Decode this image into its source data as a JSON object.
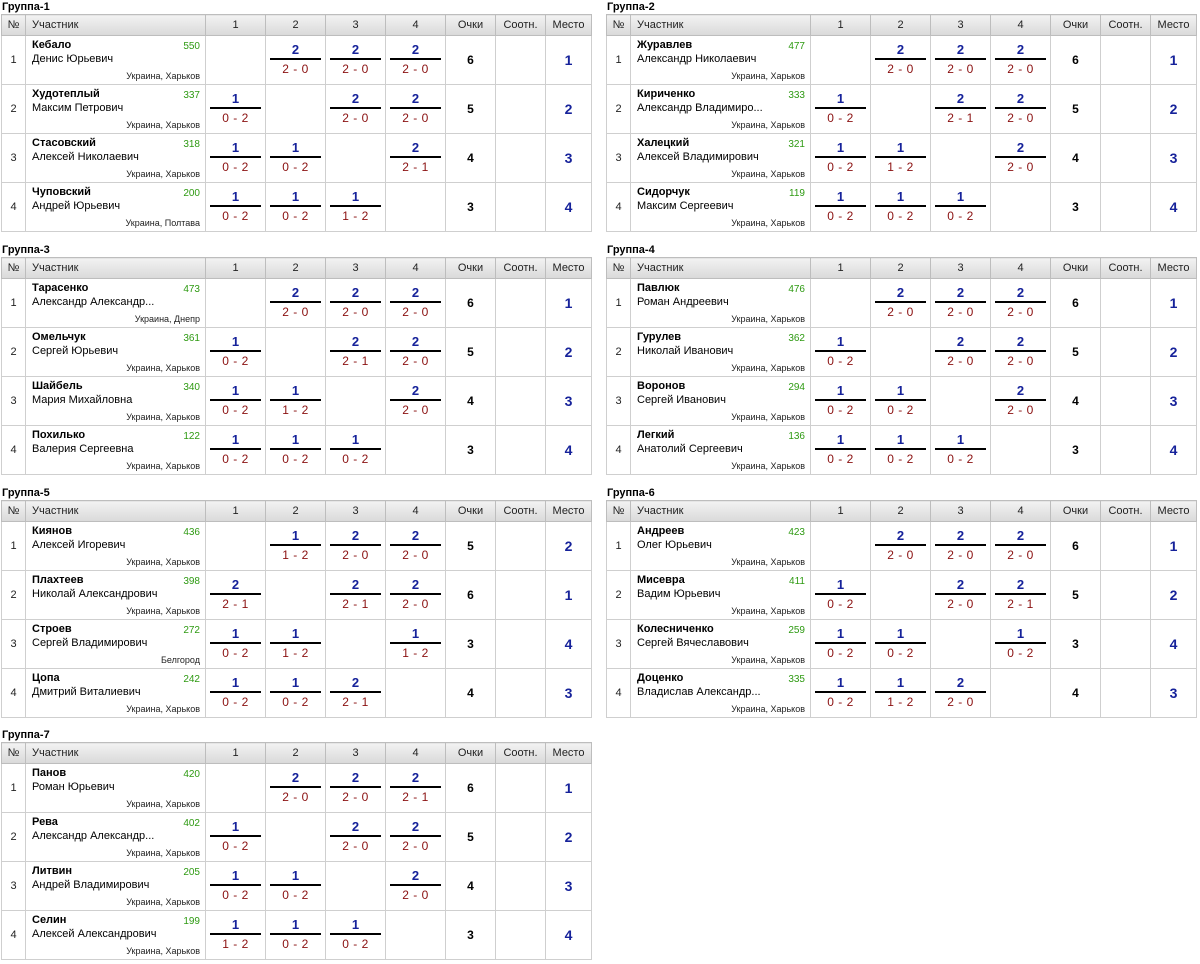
{
  "headers": {
    "num": "№",
    "player": "Участник",
    "c1": "1",
    "c2": "2",
    "c3": "3",
    "c4": "4",
    "points": "Очки",
    "sootn": "Соотн.",
    "place": "Место"
  },
  "groups": [
    {
      "title": "Группа-1",
      "players": [
        {
          "num": "1",
          "last": "Кебало",
          "first": "Денис Юрьевич",
          "rating": "550",
          "city": "Украина, Харьков",
          "r": [
            null,
            {
              "s": "2",
              "g": "2 - 0"
            },
            {
              "s": "2",
              "g": "2 - 0"
            },
            {
              "s": "2",
              "g": "2 - 0"
            }
          ],
          "points": "6",
          "place": "1"
        },
        {
          "num": "2",
          "last": "Худотеплый",
          "first": "Максим Петрович",
          "rating": "337",
          "city": "Украина, Харьков",
          "r": [
            {
              "s": "1",
              "g": "0 - 2"
            },
            null,
            {
              "s": "2",
              "g": "2 - 0"
            },
            {
              "s": "2",
              "g": "2 - 0"
            }
          ],
          "points": "5",
          "place": "2"
        },
        {
          "num": "3",
          "last": "Стасовский",
          "first": "Алексей Николаевич",
          "rating": "318",
          "city": "Украина, Харьков",
          "r": [
            {
              "s": "1",
              "g": "0 - 2"
            },
            {
              "s": "1",
              "g": "0 - 2"
            },
            null,
            {
              "s": "2",
              "g": "2 - 1"
            }
          ],
          "points": "4",
          "place": "3"
        },
        {
          "num": "4",
          "last": "Чуповский",
          "first": "Андрей Юрьевич",
          "rating": "200",
          "city": "Украина, Полтава",
          "r": [
            {
              "s": "1",
              "g": "0 - 2"
            },
            {
              "s": "1",
              "g": "0 - 2"
            },
            {
              "s": "1",
              "g": "1 - 2"
            },
            null
          ],
          "points": "3",
          "place": "4"
        }
      ]
    },
    {
      "title": "Группа-2",
      "players": [
        {
          "num": "1",
          "last": "Журавлев",
          "first": "Александр Николаевич",
          "rating": "477",
          "city": "Украина, Харьков",
          "r": [
            null,
            {
              "s": "2",
              "g": "2 - 0"
            },
            {
              "s": "2",
              "g": "2 - 0"
            },
            {
              "s": "2",
              "g": "2 - 0"
            }
          ],
          "points": "6",
          "place": "1"
        },
        {
          "num": "2",
          "last": "Кириченко",
          "first": "Александр Владимиро...",
          "rating": "333",
          "city": "Украина, Харьков",
          "r": [
            {
              "s": "1",
              "g": "0 - 2"
            },
            null,
            {
              "s": "2",
              "g": "2 - 1"
            },
            {
              "s": "2",
              "g": "2 - 0"
            }
          ],
          "points": "5",
          "place": "2"
        },
        {
          "num": "3",
          "last": "Халецкий",
          "first": "Алексей Владимирович",
          "rating": "321",
          "city": "Украина, Харьков",
          "r": [
            {
              "s": "1",
              "g": "0 - 2"
            },
            {
              "s": "1",
              "g": "1 - 2"
            },
            null,
            {
              "s": "2",
              "g": "2 - 0"
            }
          ],
          "points": "4",
          "place": "3"
        },
        {
          "num": "4",
          "last": "Сидорчук",
          "first": "Максим Сергеевич",
          "rating": "119",
          "city": "Украина, Харьков",
          "r": [
            {
              "s": "1",
              "g": "0 - 2"
            },
            {
              "s": "1",
              "g": "0 - 2"
            },
            {
              "s": "1",
              "g": "0 - 2"
            },
            null
          ],
          "points": "3",
          "place": "4"
        }
      ]
    },
    {
      "title": "Группа-3",
      "players": [
        {
          "num": "1",
          "last": "Тарасенко",
          "first": "Александр Александр...",
          "rating": "473",
          "city": "Украина, Днепр",
          "r": [
            null,
            {
              "s": "2",
              "g": "2 - 0"
            },
            {
              "s": "2",
              "g": "2 - 0"
            },
            {
              "s": "2",
              "g": "2 - 0"
            }
          ],
          "points": "6",
          "place": "1"
        },
        {
          "num": "2",
          "last": "Омельчук",
          "first": "Сергей Юрьевич",
          "rating": "361",
          "city": "Украина, Харьков",
          "r": [
            {
              "s": "1",
              "g": "0 - 2"
            },
            null,
            {
              "s": "2",
              "g": "2 - 1"
            },
            {
              "s": "2",
              "g": "2 - 0"
            }
          ],
          "points": "5",
          "place": "2"
        },
        {
          "num": "3",
          "last": "Шайбель",
          "first": "Мария Михайловна",
          "rating": "340",
          "city": "Украина, Харьков",
          "r": [
            {
              "s": "1",
              "g": "0 - 2"
            },
            {
              "s": "1",
              "g": "1 - 2"
            },
            null,
            {
              "s": "2",
              "g": "2 - 0"
            }
          ],
          "points": "4",
          "place": "3"
        },
        {
          "num": "4",
          "last": "Похилько",
          "first": "Валерия Сергеевна",
          "rating": "122",
          "city": "Украина, Харьков",
          "r": [
            {
              "s": "1",
              "g": "0 - 2"
            },
            {
              "s": "1",
              "g": "0 - 2"
            },
            {
              "s": "1",
              "g": "0 - 2"
            },
            null
          ],
          "points": "3",
          "place": "4"
        }
      ]
    },
    {
      "title": "Группа-4",
      "players": [
        {
          "num": "1",
          "last": "Павлюк",
          "first": "Роман Андреевич",
          "rating": "476",
          "city": "Украина, Харьков",
          "r": [
            null,
            {
              "s": "2",
              "g": "2 - 0"
            },
            {
              "s": "2",
              "g": "2 - 0"
            },
            {
              "s": "2",
              "g": "2 - 0"
            }
          ],
          "points": "6",
          "place": "1"
        },
        {
          "num": "2",
          "last": "Гурулев",
          "first": "Николай Иванович",
          "rating": "362",
          "city": "Украина, Харьков",
          "r": [
            {
              "s": "1",
              "g": "0 - 2"
            },
            null,
            {
              "s": "2",
              "g": "2 - 0"
            },
            {
              "s": "2",
              "g": "2 - 0"
            }
          ],
          "points": "5",
          "place": "2"
        },
        {
          "num": "3",
          "last": "Воронов",
          "first": "Сергей Иванович",
          "rating": "294",
          "city": "Украина, Харьков",
          "r": [
            {
              "s": "1",
              "g": "0 - 2"
            },
            {
              "s": "1",
              "g": "0 - 2"
            },
            null,
            {
              "s": "2",
              "g": "2 - 0"
            }
          ],
          "points": "4",
          "place": "3"
        },
        {
          "num": "4",
          "last": "Легкий",
          "first": "Анатолий Сергеевич",
          "rating": "136",
          "city": "Украина, Харьков",
          "r": [
            {
              "s": "1",
              "g": "0 - 2"
            },
            {
              "s": "1",
              "g": "0 - 2"
            },
            {
              "s": "1",
              "g": "0 - 2"
            },
            null
          ],
          "points": "3",
          "place": "4"
        }
      ]
    },
    {
      "title": "Группа-5",
      "players": [
        {
          "num": "1",
          "last": "Киянов",
          "first": "Алексей Игоревич",
          "rating": "436",
          "city": "Украина, Харьков",
          "r": [
            null,
            {
              "s": "1",
              "g": "1 - 2"
            },
            {
              "s": "2",
              "g": "2 - 0"
            },
            {
              "s": "2",
              "g": "2 - 0"
            }
          ],
          "points": "5",
          "place": "2"
        },
        {
          "num": "2",
          "last": "Плахтеев",
          "first": "Николай Александрович",
          "rating": "398",
          "city": "Украина, Харьков",
          "r": [
            {
              "s": "2",
              "g": "2 - 1"
            },
            null,
            {
              "s": "2",
              "g": "2 - 1"
            },
            {
              "s": "2",
              "g": "2 - 0"
            }
          ],
          "points": "6",
          "place": "1"
        },
        {
          "num": "3",
          "last": "Строев",
          "first": "Сергей Владимирович",
          "rating": "272",
          "city": "Белгород",
          "r": [
            {
              "s": "1",
              "g": "0 - 2"
            },
            {
              "s": "1",
              "g": "1 - 2"
            },
            null,
            {
              "s": "1",
              "g": "1 - 2"
            }
          ],
          "points": "3",
          "place": "4"
        },
        {
          "num": "4",
          "last": "Цопа",
          "first": "Дмитрий Виталиевич",
          "rating": "242",
          "city": "Украина, Харьков",
          "r": [
            {
              "s": "1",
              "g": "0 - 2"
            },
            {
              "s": "1",
              "g": "0 - 2"
            },
            {
              "s": "2",
              "g": "2 - 1"
            },
            null
          ],
          "points": "4",
          "place": "3"
        }
      ]
    },
    {
      "title": "Группа-6",
      "players": [
        {
          "num": "1",
          "last": "Андреев",
          "first": "Олег Юрьевич",
          "rating": "423",
          "city": "Украина, Харьков",
          "r": [
            null,
            {
              "s": "2",
              "g": "2 - 0"
            },
            {
              "s": "2",
              "g": "2 - 0"
            },
            {
              "s": "2",
              "g": "2 - 0"
            }
          ],
          "points": "6",
          "place": "1"
        },
        {
          "num": "2",
          "last": "Мисевра",
          "first": "Вадим Юрьевич",
          "rating": "411",
          "city": "Украина, Харьков",
          "r": [
            {
              "s": "1",
              "g": "0 - 2"
            },
            null,
            {
              "s": "2",
              "g": "2 - 0"
            },
            {
              "s": "2",
              "g": "2 - 1"
            }
          ],
          "points": "5",
          "place": "2"
        },
        {
          "num": "3",
          "last": "Колесниченко",
          "first": "Сергей Вячеславович",
          "rating": "259",
          "city": "Украина, Харьков",
          "r": [
            {
              "s": "1",
              "g": "0 - 2"
            },
            {
              "s": "1",
              "g": "0 - 2"
            },
            null,
            {
              "s": "1",
              "g": "0 - 2"
            }
          ],
          "points": "3",
          "place": "4"
        },
        {
          "num": "4",
          "last": "Доценко",
          "first": "Владислав Александр...",
          "rating": "335",
          "city": "Украина, Харьков",
          "r": [
            {
              "s": "1",
              "g": "0 - 2"
            },
            {
              "s": "1",
              "g": "1 - 2"
            },
            {
              "s": "2",
              "g": "2 - 0"
            },
            null
          ],
          "points": "4",
          "place": "3"
        }
      ]
    },
    {
      "title": "Группа-7",
      "players": [
        {
          "num": "1",
          "last": "Панов",
          "first": "Роман Юрьевич",
          "rating": "420",
          "city": "Украина, Харьков",
          "r": [
            null,
            {
              "s": "2",
              "g": "2 - 0"
            },
            {
              "s": "2",
              "g": "2 - 0"
            },
            {
              "s": "2",
              "g": "2 - 1"
            }
          ],
          "points": "6",
          "place": "1"
        },
        {
          "num": "2",
          "last": "Рева",
          "first": "Александр Александр...",
          "rating": "402",
          "city": "Украина, Харьков",
          "r": [
            {
              "s": "1",
              "g": "0 - 2"
            },
            null,
            {
              "s": "2",
              "g": "2 - 0"
            },
            {
              "s": "2",
              "g": "2 - 0"
            }
          ],
          "points": "5",
          "place": "2"
        },
        {
          "num": "3",
          "last": "Литвин",
          "first": "Андрей Владимирович",
          "rating": "205",
          "city": "Украина, Харьков",
          "r": [
            {
              "s": "1",
              "g": "0 - 2"
            },
            {
              "s": "1",
              "g": "0 - 2"
            },
            null,
            {
              "s": "2",
              "g": "2 - 0"
            }
          ],
          "points": "4",
          "place": "3"
        },
        {
          "num": "4",
          "last": "Селин",
          "first": "Алексей Александрович",
          "rating": "199",
          "city": "Украина, Харьков",
          "r": [
            {
              "s": "1",
              "g": "1 - 2"
            },
            {
              "s": "1",
              "g": "0 - 2"
            },
            {
              "s": "1",
              "g": "0 - 2"
            },
            null
          ],
          "points": "3",
          "place": "4"
        }
      ]
    }
  ]
}
